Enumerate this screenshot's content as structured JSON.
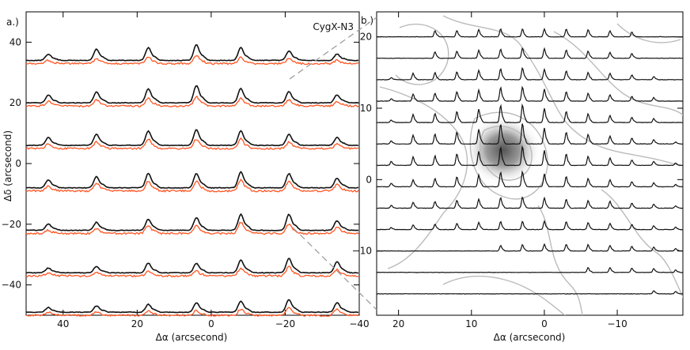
{
  "figure": {
    "source_label": "CygX-N3"
  },
  "chart_data": [
    {
      "panel_label": "a.)",
      "type": "line",
      "title": "",
      "xlabel": "Δα (arcsecond)",
      "ylabel": "Δδ (arcsecond)",
      "xlim": [
        50,
        -40
      ],
      "ylim": [
        -50,
        50
      ],
      "xticks": [
        40,
        20,
        0,
        -20,
        -40
      ],
      "yticks": [
        40,
        20,
        0,
        -20,
        -40
      ],
      "xtick_labels": [
        "40",
        "20",
        "0",
        "−20",
        "−40"
      ],
      "ytick_labels": [
        "40",
        "20",
        "0",
        "−20",
        "−40"
      ],
      "row_offsets": [
        34,
        20,
        6,
        -8,
        -22,
        -36,
        -49
      ],
      "column_offsets": [
        44,
        31,
        17,
        4,
        -8,
        -21,
        -34
      ],
      "series": [
        {
          "name": "black spectra",
          "color": "#111111",
          "peak_heights": [
            [
              4,
              7,
              8,
              10,
              8,
              6,
              4
            ],
            [
              5,
              7,
              9,
              11,
              9,
              7,
              5
            ],
            [
              5,
              7,
              9,
              10,
              9,
              7,
              5
            ],
            [
              5,
              7,
              9,
              9,
              10,
              9,
              6
            ],
            [
              4,
              5,
              7,
              8,
              10,
              10,
              6
            ],
            [
              3,
              4,
              6,
              6,
              8,
              9,
              7
            ],
            [
              3,
              4,
              5,
              6,
              7,
              8,
              6
            ]
          ]
        },
        {
          "name": "orange spectra",
          "color": "#ff5522",
          "peak_heights": [
            [
              2,
              3,
              4,
              5,
              4,
              3,
              2
            ],
            [
              3,
              4,
              5,
              6,
              5,
              4,
              3
            ],
            [
              3,
              4,
              6,
              6,
              6,
              4,
              3
            ],
            [
              3,
              5,
              6,
              6,
              7,
              6,
              4
            ],
            [
              2,
              3,
              5,
              5,
              7,
              6,
              4
            ],
            [
              2,
              2,
              3,
              3,
              5,
              6,
              4
            ],
            [
              2,
              2,
              3,
              3,
              4,
              5,
              4
            ]
          ]
        }
      ]
    },
    {
      "panel_label": "b.)",
      "type": "line",
      "title": "",
      "xlabel": "Δα (arcsecond)",
      "ylabel": "",
      "xlim": [
        23,
        -19
      ],
      "ylim": [
        -19,
        23.5
      ],
      "xticks": [
        20,
        10,
        0,
        -10
      ],
      "yticks": [
        20,
        10,
        0,
        -10
      ],
      "xtick_labels": [
        "20",
        "10",
        "0",
        "−10"
      ],
      "ytick_labels": [
        "20",
        "10",
        "0",
        "−10"
      ],
      "row_offsets": [
        20,
        17,
        14,
        11,
        8,
        5,
        2,
        -1,
        -4,
        -7,
        -10,
        -13,
        -16
      ],
      "column_offsets": [
        21,
        18,
        15,
        12,
        9,
        6,
        3,
        0,
        -3,
        -6,
        -9,
        -12,
        -15,
        -18
      ],
      "series": [
        {
          "name": "black spectra",
          "color": "#111111",
          "peak_heights": [
            [
              0,
              0,
              1.5,
              1.6,
              1.8,
              2,
              2,
              2,
              2,
              1.8,
              1.5,
              1.2,
              0,
              0
            ],
            [
              0,
              0,
              1.6,
              1.8,
              2,
              2.3,
              2.6,
              2.4,
              2.1,
              1.8,
              1.5,
              1.2,
              0,
              0
            ],
            [
              0.5,
              1.6,
              1.8,
              2,
              2.4,
              2.8,
              3,
              2.6,
              2.2,
              1.8,
              1.6,
              1.2,
              0.8,
              0
            ],
            [
              0.6,
              1.8,
              2,
              2.4,
              2.8,
              3.4,
              3.6,
              3,
              2.4,
              2,
              1.6,
              1.2,
              0.9,
              0
            ],
            [
              0.6,
              2,
              2.3,
              2.8,
              3.4,
              4.3,
              4.5,
              3.6,
              2.8,
              2.2,
              1.8,
              1.3,
              1,
              0
            ],
            [
              0.8,
              2.2,
              2.5,
              3,
              3.7,
              5,
              5.2,
              4,
              3,
              2.4,
              2,
              1.5,
              1.1,
              0.5
            ],
            [
              1,
              2.1,
              2.4,
              2.9,
              3.5,
              4.6,
              4.8,
              3.8,
              2.9,
              2.3,
              1.9,
              1.4,
              1,
              0.6
            ],
            [
              0.9,
              1.8,
              2.1,
              2.5,
              3,
              3.7,
              3.8,
              3.2,
              2.6,
              2.1,
              1.8,
              1.3,
              1,
              0.6
            ],
            [
              0.7,
              1.5,
              1.7,
              2,
              2.3,
              2.7,
              2.8,
              2.6,
              2.3,
              1.9,
              1.7,
              1.3,
              1,
              0.6
            ],
            [
              0.5,
              1.2,
              1.4,
              1.6,
              1.8,
              2,
              2.1,
              2.1,
              2,
              1.8,
              1.6,
              1.3,
              1,
              0.6
            ],
            [
              0,
              0,
              0,
              0,
              0,
              1.4,
              1.6,
              1.7,
              1.7,
              1.6,
              1.4,
              1.2,
              1,
              0.6
            ],
            [
              0,
              0,
              0,
              0,
              0,
              0,
              0,
              0,
              0,
              1.2,
              1.2,
              1.1,
              1,
              0.6
            ],
            [
              0,
              0,
              0,
              0,
              0,
              0,
              0,
              0,
              0,
              0,
              0,
              0,
              0.8,
              0.6
            ]
          ]
        }
      ]
    }
  ]
}
